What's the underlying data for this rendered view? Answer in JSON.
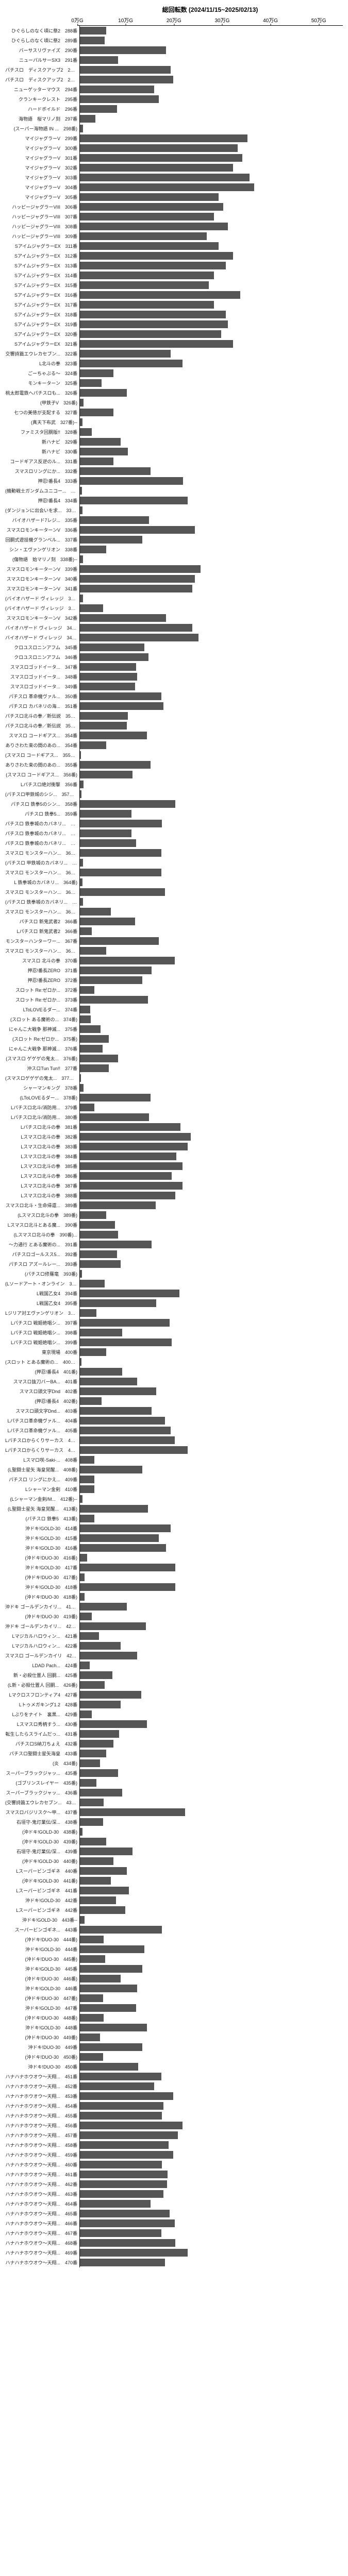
{
  "chart": {
    "title": "総回転数 (2024/11/15~2025/02/13)",
    "type": "bar-horizontal",
    "bar_color": "#555555",
    "background_color": "#ffffff",
    "axis_color": "#000000",
    "label_fontsize": 9,
    "title_fontsize": 12,
    "xaxis": {
      "min": 0,
      "max": 550000,
      "ticks": [
        0,
        100000,
        200000,
        300000,
        400000,
        500000
      ],
      "tick_labels": [
        "0万G",
        "10万G",
        "20万G",
        "30万G",
        "40万G",
        "50万G"
      ]
    },
    "rows": [
      {
        "label": "ひぐらしのなく頃に祭2　288番",
        "value": 55000
      },
      {
        "label": "ひぐらしのなく頃に祭2　289番",
        "value": 52000
      },
      {
        "label": "バーサスリヴァイズ　290番",
        "value": 180000
      },
      {
        "label": "ニューパルサーSX3　291番",
        "value": 80000
      },
      {
        "label": "パチスロ　ディスクアップ2　292番",
        "value": 190000
      },
      {
        "label": "パチスロ　ディスクアップ2　293番",
        "value": 195000
      },
      {
        "label": "ニューゲッターマウス　294番",
        "value": 155000
      },
      {
        "label": "クランキークレスト　295番",
        "value": 165000
      },
      {
        "label": "ハードボイルド　296番",
        "value": 78000
      },
      {
        "label": "海物語　桜マリノ刻　297番",
        "value": 32000
      },
      {
        "label": "(スーパー海物語 IN ...　298番)",
        "value": 6000
      },
      {
        "label": "マイジャグラーV　299番",
        "value": 350000
      },
      {
        "label": "マイジャグラーV　300番",
        "value": 330000
      },
      {
        "label": "マイジャグラーV　301番",
        "value": 340000
      },
      {
        "label": "マイジャグラーV　302番",
        "value": 320000
      },
      {
        "label": "マイジャグラーV　303番",
        "value": 355000
      },
      {
        "label": "マイジャグラーV　304番",
        "value": 365000
      },
      {
        "label": "マイジャグラーV　305番",
        "value": 290000
      },
      {
        "label": "ハッピージャグラーVIII　306番",
        "value": 300000
      },
      {
        "label": "ハッピージャグラーVIII　307番",
        "value": 280000
      },
      {
        "label": "ハッピージャグラーVIII　308番",
        "value": 310000
      },
      {
        "label": "ハッピージャグラーVIII　309番",
        "value": 265000
      },
      {
        "label": "SアイムジャグラーEX　311番",
        "value": 290000
      },
      {
        "label": "SアイムジャグラーEX　312番",
        "value": 320000
      },
      {
        "label": "SアイムジャグラーEX　313番",
        "value": 305000
      },
      {
        "label": "SアイムジャグラーEX　314番",
        "value": 280000
      },
      {
        "label": "SアイムジャグラーEX　315番",
        "value": 270000
      },
      {
        "label": "SアイムジャグラーEX　316番",
        "value": 335000
      },
      {
        "label": "SアイムジャグラーEX　317番",
        "value": 280000
      },
      {
        "label": "SアイムジャグラーEX　318番",
        "value": 305000
      },
      {
        "label": "SアイムジャグラーEX　319番",
        "value": 310000
      },
      {
        "label": "SアイムジャグラーEX　320番",
        "value": 295000
      },
      {
        "label": "SアイムジャグラーEX　321番",
        "value": 320000
      },
      {
        "label": "交響詩篇エウレカセブン...　322番",
        "value": 190000
      },
      {
        "label": "L北斗の拳　323番",
        "value": 215000
      },
      {
        "label": "ごーちゃぶる～　324番",
        "value": 70000
      },
      {
        "label": "モンキーターン　325番",
        "value": 45000
      },
      {
        "label": "桃太郎電鉄へパチスロも...　326番",
        "value": 98000
      },
      {
        "label": "(甲鉄子V　326番)",
        "value": 8000
      },
      {
        "label": "七つの美徳が支配する　327番",
        "value": 70000
      },
      {
        "label": "(真天下布武　327番)--",
        "value": 5000
      },
      {
        "label": "ファミスタ回胴版!!　328番",
        "value": 25000
      },
      {
        "label": "新ハナビ　329番",
        "value": 85000
      },
      {
        "label": "新ハナビ　330番",
        "value": 100000
      },
      {
        "label": "コードギアス反逆のル...　331番",
        "value": 70000
      },
      {
        "label": "スマスロリングにか...　332番",
        "value": 148000
      },
      {
        "label": "押忍!番長4　333番",
        "value": 216000
      },
      {
        "label": "(機動戦士ガンダムユニコー...　333番)--",
        "value": 4000
      },
      {
        "label": "押忍!番長4　334番",
        "value": 225000
      },
      {
        "label": "(ダンジョンに出会いを求...　334番)--",
        "value": 5000
      },
      {
        "label": "バイオハザード7レジ...　335番",
        "value": 145000
      },
      {
        "label": "スマスロモンキーターンV　336番",
        "value": 240000
      },
      {
        "label": "回胴式遊技機グランベル...　337番",
        "value": 130000
      },
      {
        "label": "シン・エヴァンゲリオン　338番",
        "value": 55000
      },
      {
        "label": "(傷物語　始マリノ刻　338番)--",
        "value": 7000
      },
      {
        "label": "スマスロモンキーターンV　339番",
        "value": 252000
      },
      {
        "label": "スマスロモンキーターンV　340番",
        "value": 240000
      },
      {
        "label": "スマスロモンキーターンV　341番",
        "value": 235000
      },
      {
        "label": "(バイオハザード ヴィレッジ　341番)--",
        "value": 6000
      },
      {
        "label": "(バイオハザード ヴィレッジ　342番)--",
        "value": 48000
      },
      {
        "label": "スマスロモンキーターンV　342番",
        "value": 180000
      },
      {
        "label": "バイオハザード ヴィレッジ　343番",
        "value": 235000
      },
      {
        "label": "バイオハザード ヴィレッジ　344番",
        "value": 248000
      },
      {
        "label": "クロユスロニンアフム　345番",
        "value": 135000
      },
      {
        "label": "クロユスロニンアフム　346番",
        "value": 143000
      },
      {
        "label": "スマスロゴッドイータ...　347番",
        "value": 118000
      },
      {
        "label": "スマスロゴッドイータ...　348番",
        "value": 120000
      },
      {
        "label": "スマスロゴッドイータ...　349番",
        "value": 115000
      },
      {
        "label": "パチスロ 革命機ヴァル...　350番",
        "value": 170000
      },
      {
        "label": "パチスロ カバネリの海...　351番",
        "value": 175000
      },
      {
        "label": "パチスロ北斗の拳／新伝説　352番",
        "value": 100000
      },
      {
        "label": "パチスロ北斗の拳／新伝説　353番",
        "value": 98000
      },
      {
        "label": "スマスロ コードギアス...　354番",
        "value": 140000
      },
      {
        "label": "ありさわた束の間のあの...　354番",
        "value": 55000
      },
      {
        "label": "(スマスロ コードギアス...　355番)--",
        "value": 2000
      },
      {
        "label": "ありさわた束の間のあの...　355番",
        "value": 148000
      },
      {
        "label": "(スマスロ コードギアス...　356番)",
        "value": 110000
      },
      {
        "label": "Lパチスロ絶対衝撃　356番",
        "value": 8000
      },
      {
        "label": "(パチスロ甲鉄城のシシ...　357番)--",
        "value": 3000
      },
      {
        "label": "パチスロ 鉄拳5のシン...　358番",
        "value": 200000
      },
      {
        "label": "パチスロ 鉄拳5...　359番",
        "value": 108000
      },
      {
        "label": "パチスロ 鉄拳城のカバネリ...　360番",
        "value": 172000
      },
      {
        "label": "パチスロ 鉄拳城のカバネリ...　361番",
        "value": 108000
      },
      {
        "label": "パチスロ 鉄拳城のカバネリ...　362番",
        "value": 118000
      },
      {
        "label": "スマスロ モンスターハン...　363番",
        "value": 170000
      },
      {
        "label": "(パチスロ 甲鉄城のカバネリ...　363番)",
        "value": 6000
      },
      {
        "label": "スマスロ モンスターハン...　364番",
        "value": 170000
      },
      {
        "label": "L 鉄拳城のカバネリ...　364番)",
        "value": 5000
      },
      {
        "label": "スマスロ モンスターハン...　365番",
        "value": 178000
      },
      {
        "label": "(パチスロ 鉄拳城のカバネリ...　365番)",
        "value": 6000
      },
      {
        "label": "スマスロ モンスターハン...　366番",
        "value": 65000
      },
      {
        "label": "パチスロ 新鬼武者2　366番",
        "value": 115000
      },
      {
        "label": "Lパチスロ 新鬼武者2　366番",
        "value": 25000
      },
      {
        "label": "モンスターハンターワー...　367番",
        "value": 165000
      },
      {
        "label": "スマスロ モンスターハン...　368番--",
        "value": 55000
      },
      {
        "label": "スマスロ 北斗の拳　370番",
        "value": 198000
      },
      {
        "label": "押忍!番長ZERO　371番",
        "value": 150000
      },
      {
        "label": "押忍!番長ZERO　372番",
        "value": 130000
      },
      {
        "label": "スロット Re:ゼロか...　372番",
        "value": 30000
      },
      {
        "label": "スロット Re:ゼロか...　373番",
        "value": 142000
      },
      {
        "label": "LToLOVEるダー...　374番",
        "value": 22000
      },
      {
        "label": "(スロット ある魔術の...　374番)",
        "value": 23000
      },
      {
        "label": "にゃんこ大戦争 那神滅...　375番",
        "value": 43000
      },
      {
        "label": "(スロット Re:ゼロか...　375番)",
        "value": 60000
      },
      {
        "label": "にゃんこ大戦争 那神滅...　376番",
        "value": 47000
      },
      {
        "label": "(スマスロ ゲゲゲの鬼太...　376番)",
        "value": 80000
      },
      {
        "label": "沖スロTun Tun!!　377番",
        "value": 60000
      },
      {
        "label": "(スマスロゲゲゲの鬼太...　377番)--",
        "value": 2000
      },
      {
        "label": "シャーマンキング　378番",
        "value": 8000
      },
      {
        "label": "(LToLOVEるダー...　378番)",
        "value": 148000
      },
      {
        "label": "Lパチスロ北斗/消防用...　379番",
        "value": 30000
      },
      {
        "label": "Lパチスロ北斗/消防用...　380番",
        "value": 145000
      },
      {
        "label": "Lパチスロ北斗の拳　381番",
        "value": 210000
      },
      {
        "label": "Lスマスロ北斗の拳　382番",
        "value": 232000
      },
      {
        "label": "Lスマスロ北斗の拳　383番",
        "value": 225000
      },
      {
        "label": "Lスマスロ北斗の拳　384番",
        "value": 202000
      },
      {
        "label": "Lスマスロ北斗の拳　385番",
        "value": 215000
      },
      {
        "label": "Lスマスロ北斗の拳　386番",
        "value": 192000
      },
      {
        "label": "Lスマスロ北斗の拳　387番",
        "value": 215000
      },
      {
        "label": "Lスマスロ北斗の拳　388番",
        "value": 200000
      },
      {
        "label": "スマスロ北斗・生命帰還...　389番",
        "value": 158000
      },
      {
        "label": "(Lスマスロ北斗の拳　389番)",
        "value": 55000
      },
      {
        "label": "Lスマスロ北斗とある魔...　390番",
        "value": 73000
      },
      {
        "label": "(Lスマスロ北斗の拳　390番)...",
        "value": 80000
      },
      {
        "label": "～力通行 とある魔術の...　391番",
        "value": 150000
      },
      {
        "label": "パチスロゴールスス5...　392番",
        "value": 78000
      },
      {
        "label": "パチスロ アズールレー...　393番",
        "value": 85000
      },
      {
        "label": "(パチスロ修羅竜　393番)",
        "value": 4000
      },
      {
        "label": "(Lソードアート・オンライン　393番)",
        "value": 52000
      },
      {
        "label": "L戦国乙女4　394番",
        "value": 208000
      },
      {
        "label": "L戦国乙女4　395番",
        "value": 160000
      },
      {
        "label": "Lジリア対エヴァンゲリオン　396番",
        "value": 35000
      },
      {
        "label": "Lパチスロ 戦姫絶唱シ...　397番",
        "value": 188000
      },
      {
        "label": "Lパチスロ 戦姫絶唱シ...　398番",
        "value": 88000
      },
      {
        "label": "Lパチスロ 戦姫絶唱シ...　399番",
        "value": 192000
      },
      {
        "label": "東京現場　400番",
        "value": 55000
      },
      {
        "label": "(スロット とある魔術の...　400番)--",
        "value": 3000
      },
      {
        "label": "(押忍!番長4　401番)",
        "value": 88000
      },
      {
        "label": "スマスロ抜刀バーBA...　401番",
        "value": 120000
      },
      {
        "label": "スマスロ頭文字Dnd　402番",
        "value": 160000
      },
      {
        "label": "(押忍!番長4　402番)",
        "value": 45000
      },
      {
        "label": "スマスロ頭文字Dnd...　403番",
        "value": 150000
      },
      {
        "label": "Lパチスロ革命機ヴァル...　404番",
        "value": 178000
      },
      {
        "label": "Lパチスロ革命機ヴァル...　405番",
        "value": 190000
      },
      {
        "label": "Lパチスロからくりサーカス　406番",
        "value": 198000
      },
      {
        "label": "Lパチスロからくりサーカス　407番",
        "value": 225000
      },
      {
        "label": "Lスマロ咲-Saki-...　408番",
        "value": 30000
      },
      {
        "label": "(L聖闘士星矢 海皇覚醒...　408番)",
        "value": 130000
      },
      {
        "label": "パチスロ リングにかえ...　409番",
        "value": 30000
      },
      {
        "label": "Lシャーマン金剣　410番",
        "value": 30000
      },
      {
        "label": "(Lシャーマン金剣/M...　412番)--",
        "value": 5000
      },
      {
        "label": "(L聖闘士星矢 海皇覚醒...　413番)",
        "value": 142000
      },
      {
        "label": "(パチスロ 鉄拳5　413番)",
        "value": 30000
      },
      {
        "label": "沖ドキ!GOLD-30　414番",
        "value": 190000
      },
      {
        "label": "沖ドキ!GOLD-30　415番",
        "value": 165000
      },
      {
        "label": "沖ドキ!GOLD-30　416番",
        "value": 180000
      },
      {
        "label": "(沖ドキ!DUO-30　416番)",
        "value": 15000
      },
      {
        "label": "沖ドキ!GOLD-30　417番",
        "value": 200000
      },
      {
        "label": "(沖ドキ!DUO-30　417番)",
        "value": 10000
      },
      {
        "label": "沖ドキ!GOLD-30　418番",
        "value": 200000
      },
      {
        "label": "(沖ドキ!DUO-30　418番)",
        "value": 10000
      },
      {
        "label": "沖ドキ ゴールデンカイリ...　419番",
        "value": 98000
      },
      {
        "label": "(沖ドキ!DUO-30　419番)",
        "value": 25000
      },
      {
        "label": "沖ドキ ゴールデンカイリ...　420番",
        "value": 138000
      },
      {
        "label": "Lマジカルハロウィン...　421番",
        "value": 40000
      },
      {
        "label": "Lマジカルハロウィン...　422番",
        "value": 85000
      },
      {
        "label": "スマスロ ゴールデンカイリ　423番",
        "value": 120000
      },
      {
        "label": "LDAD Pach...　424番",
        "value": 20000
      },
      {
        "label": "新・必殺仕置人 回胴...　425番",
        "value": 68000
      },
      {
        "label": "(L新・必殺仕置人 回胴...　426番)",
        "value": 52000
      },
      {
        "label": "Lマクロスフロンティア4　427番",
        "value": 128000
      },
      {
        "label": "Lトゥメガキング1.2　428番",
        "value": 85000
      },
      {
        "label": "Lぶりをナイト　裏黒...　429番",
        "value": 25000
      },
      {
        "label": "Lスマスロ秀柄すう...　430番",
        "value": 140000
      },
      {
        "label": "転生したらスライムだっ...　431番",
        "value": 82000
      },
      {
        "label": "パチスロS納刀ちょえ　432番",
        "value": 70000
      },
      {
        "label": "パチスロ聖闘士星矢海皇　433番",
        "value": 55000
      },
      {
        "label": "(炎　434番)",
        "value": 42000
      },
      {
        "label": "スーパーブラックジャッ...　435番",
        "value": 80000
      },
      {
        "label": "(ゴブリンスレイヤー　435番)",
        "value": 35000
      },
      {
        "label": "スーパーブラックジャッ...　436番",
        "value": 88000
      },
      {
        "label": "(交響詩篇エウレカセブン...　436番)",
        "value": 50000
      },
      {
        "label": "スマスロバジリスク～甲...　437番",
        "value": 220000
      },
      {
        "label": "石垣守‐鬼灯業伝/深...　438番",
        "value": 48000
      },
      {
        "label": "(沖ドキ!GOLD-30　438番)",
        "value": 5000
      },
      {
        "label": "(沖ドキ!GOLD-30　439番)",
        "value": 55000
      },
      {
        "label": "石垣守‐鬼灯業伝/深...　439番",
        "value": 110000
      },
      {
        "label": "(沖ドキ!GOLD-30　440番)",
        "value": 70000
      },
      {
        "label": "Lスーパービンゴギネ　440番",
        "value": 98000
      },
      {
        "label": "(沖ドキ!GOLD-30　441番)",
        "value": 65000
      },
      {
        "label": "Lスーパービンゴギネ　441番",
        "value": 102000
      },
      {
        "label": "沖ドキ!GOLD-30　442番",
        "value": 75000
      },
      {
        "label": "Lスーパービンゴギネ　442番",
        "value": 95000
      },
      {
        "label": "沖ドキ!GOLD-30　443番--",
        "value": 10000
      },
      {
        "label": "スーパービンゴギネ...　443番",
        "value": 172000
      },
      {
        "label": "(沖ドキ!DUO-30　444番)",
        "value": 50000
      },
      {
        "label": "沖ドキ!GOLD-30　444番",
        "value": 135000
      },
      {
        "label": "(沖ドキ!DUO-30　445番)",
        "value": 53000
      },
      {
        "label": "沖ドキ!GOLD-30　445番",
        "value": 130000
      },
      {
        "label": "(沖ドキ!DUO-30　446番)",
        "value": 85000
      },
      {
        "label": "沖ドキ!GOLD-30　446番",
        "value": 120000
      },
      {
        "label": "(沖ドキ!DUO-30　447番)",
        "value": 48000
      },
      {
        "label": "沖ドキ!GOLD-30　447番",
        "value": 118000
      },
      {
        "label": "(沖ドキ!DUO-30　448番)",
        "value": 50000
      },
      {
        "label": "沖ドキ!GOLD-30　448番",
        "value": 140000
      },
      {
        "label": "(沖ドキ!DUO-30　449番)",
        "value": 42000
      },
      {
        "label": "沖ドキ!DUO-30　449番",
        "value": 130000
      },
      {
        "label": "(沖ドキ!DUO-30　450番)",
        "value": 48000
      },
      {
        "label": "沖ドキ!DUO-30　450番",
        "value": 122000
      },
      {
        "label": "ハナハナホウオウ～天翔...　451番",
        "value": 170000
      },
      {
        "label": "ハナハナホウオウ～天翔...　452番",
        "value": 155000
      },
      {
        "label": "ハナハナホウオウ～天翔...　453番",
        "value": 195000
      },
      {
        "label": "ハナハナホウオウ～天翔...　454番",
        "value": 175000
      },
      {
        "label": "ハナハナホウオウ～天翔...　455番",
        "value": 172000
      },
      {
        "label": "ハナハナホウオウ～天翔...　456番",
        "value": 215000
      },
      {
        "label": "ハナハナホウオウ～天翔...　457番",
        "value": 205000
      },
      {
        "label": "ハナハナホウオウ～天翔...　458番",
        "value": 185000
      },
      {
        "label": "ハナハナホウオウ～天翔...　459番",
        "value": 195000
      },
      {
        "label": "ハナハナホウオウ～天翔...　460番",
        "value": 172000
      },
      {
        "label": "ハナハナホウオウ～天翔...　461番",
        "value": 183000
      },
      {
        "label": "ハナハナホウオウ～天翔...　462番",
        "value": 182000
      },
      {
        "label": "ハナハナホウオウ～天翔...　463番",
        "value": 175000
      },
      {
        "label": "ハナハナホウオウ～天翔...　464番",
        "value": 148000
      },
      {
        "label": "ハナハナホウオウ～天翔...　465番",
        "value": 188000
      },
      {
        "label": "ハナハナホウオウ～天翔...　466番",
        "value": 198000
      },
      {
        "label": "ハナハナホウオウ～天翔...　467番",
        "value": 170000
      },
      {
        "label": "ハナハナホウオウ～天翔...　468番",
        "value": 200000
      },
      {
        "label": "ハナハナホウオウ～天翔...　469番",
        "value": 225000
      },
      {
        "label": "ハナハナホウオウ～天翔...　470番",
        "value": 178000
      }
    ]
  }
}
